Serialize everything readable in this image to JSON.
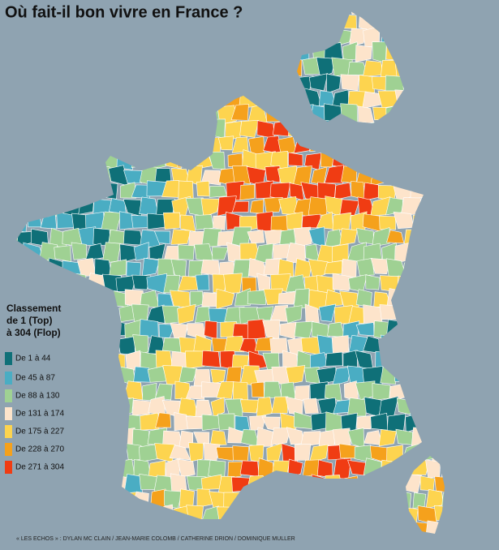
{
  "title": "Où fait-il bon vivre en France ?",
  "legend": {
    "title_lines": [
      "Classement",
      "de 1 (Top)",
      "à 304 (Flop)"
    ],
    "items": [
      {
        "label": "De 1 à 44",
        "color": "#0f7078"
      },
      {
        "label": "De 45 à 87",
        "color": "#4aadc3"
      },
      {
        "label": "De 88 à 130",
        "color": "#9fd193"
      },
      {
        "label": "De 131 à 174",
        "color": "#fde4cb"
      },
      {
        "label": "De 175 à 227",
        "color": "#fdd44f"
      },
      {
        "label": "De 228 à 270",
        "color": "#f5a11c"
      },
      {
        "label": "De 271 à 304",
        "color": "#f03c13"
      }
    ]
  },
  "credit": "« LES ECHOS » : DYLAN MC CLAIN / JEAN-MARIE COLOMB / CATHERINE DRION / DOMINIQUE MULLER"
}
